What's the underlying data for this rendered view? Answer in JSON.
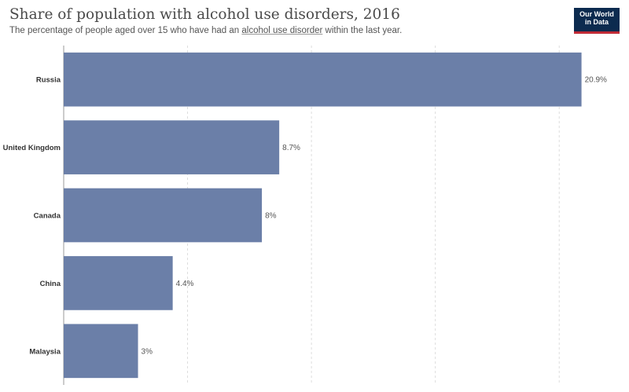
{
  "header": {
    "title": "Share of population with alcohol use disorders, 2016",
    "subtitle_before": "The percentage of people aged over 15 who have had an ",
    "subtitle_link": "alcohol use disorder",
    "subtitle_after": " within the last year.",
    "logo_line1": "Our World",
    "logo_line2": "in Data"
  },
  "colors": {
    "bar": "#6b7fa8",
    "grid": "#dddddd",
    "label": "#333333",
    "value_label": "#555555"
  },
  "chart_data": {
    "type": "bar",
    "orientation": "horizontal",
    "title": "Share of population with alcohol use disorders, 2016",
    "categories": [
      "Russia",
      "United Kingdom",
      "Canada",
      "China",
      "Malaysia"
    ],
    "values": [
      20.9,
      8.7,
      8,
      4.4,
      3
    ],
    "value_labels": [
      "20.9%",
      "8.7%",
      "8%",
      "4.4%",
      "3%"
    ],
    "xlim": [
      0,
      22.5
    ],
    "grid": true,
    "legend": "none"
  }
}
